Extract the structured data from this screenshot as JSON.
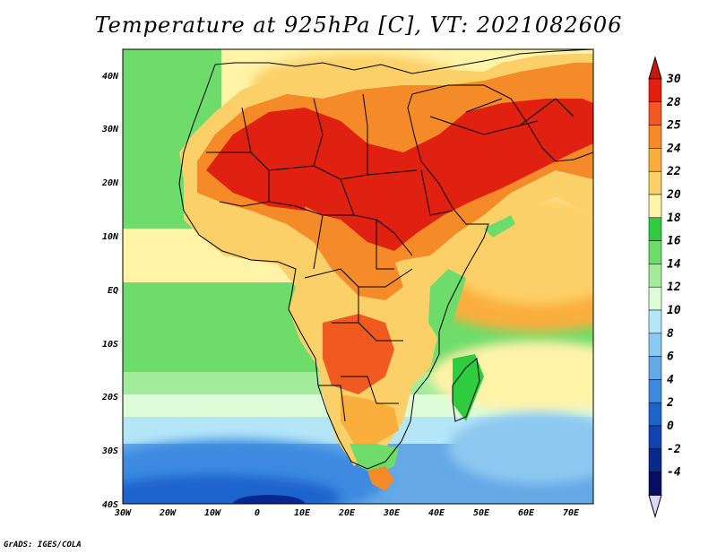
{
  "title": "Temperature at 925hPa [C], VT: 2021082606",
  "credit": "GrADS: IGES/COLA",
  "map": {
    "variable": "Temperature at 925hPa",
    "units": "C",
    "valid_time": "2021082606",
    "lon_range": [
      -30,
      75
    ],
    "lat_range": [
      -40,
      45
    ],
    "lat_ticks": [
      "40N",
      "30N",
      "20N",
      "10N",
      "EQ",
      "10S",
      "20S",
      "30S",
      "40S"
    ],
    "lon_ticks": [
      "30W",
      "20W",
      "10W",
      "0",
      "10E",
      "20E",
      "30E",
      "40E",
      "50E",
      "60E",
      "70E"
    ]
  },
  "colorbar": {
    "labels": [
      "30",
      "28",
      "25",
      "24",
      "22",
      "20",
      "18",
      "16",
      "14",
      "12",
      "10",
      "8",
      "6",
      "4",
      "2",
      "0",
      "-2",
      "-4"
    ],
    "colors": [
      "#e02010",
      "#f05a20",
      "#f58a28",
      "#faae3c",
      "#fcd068",
      "#fff3a8",
      "#2ecc3e",
      "#6ddc6a",
      "#a4ec9c",
      "#dcfcd8",
      "#b4e6f8",
      "#8cc8f0",
      "#64a8e6",
      "#3c8ae0",
      "#1c64cc",
      "#1242b0",
      "#082890",
      "#060f64"
    ],
    "top_color": "#c8180a",
    "bottom_color": "#dcd8fa"
  }
}
